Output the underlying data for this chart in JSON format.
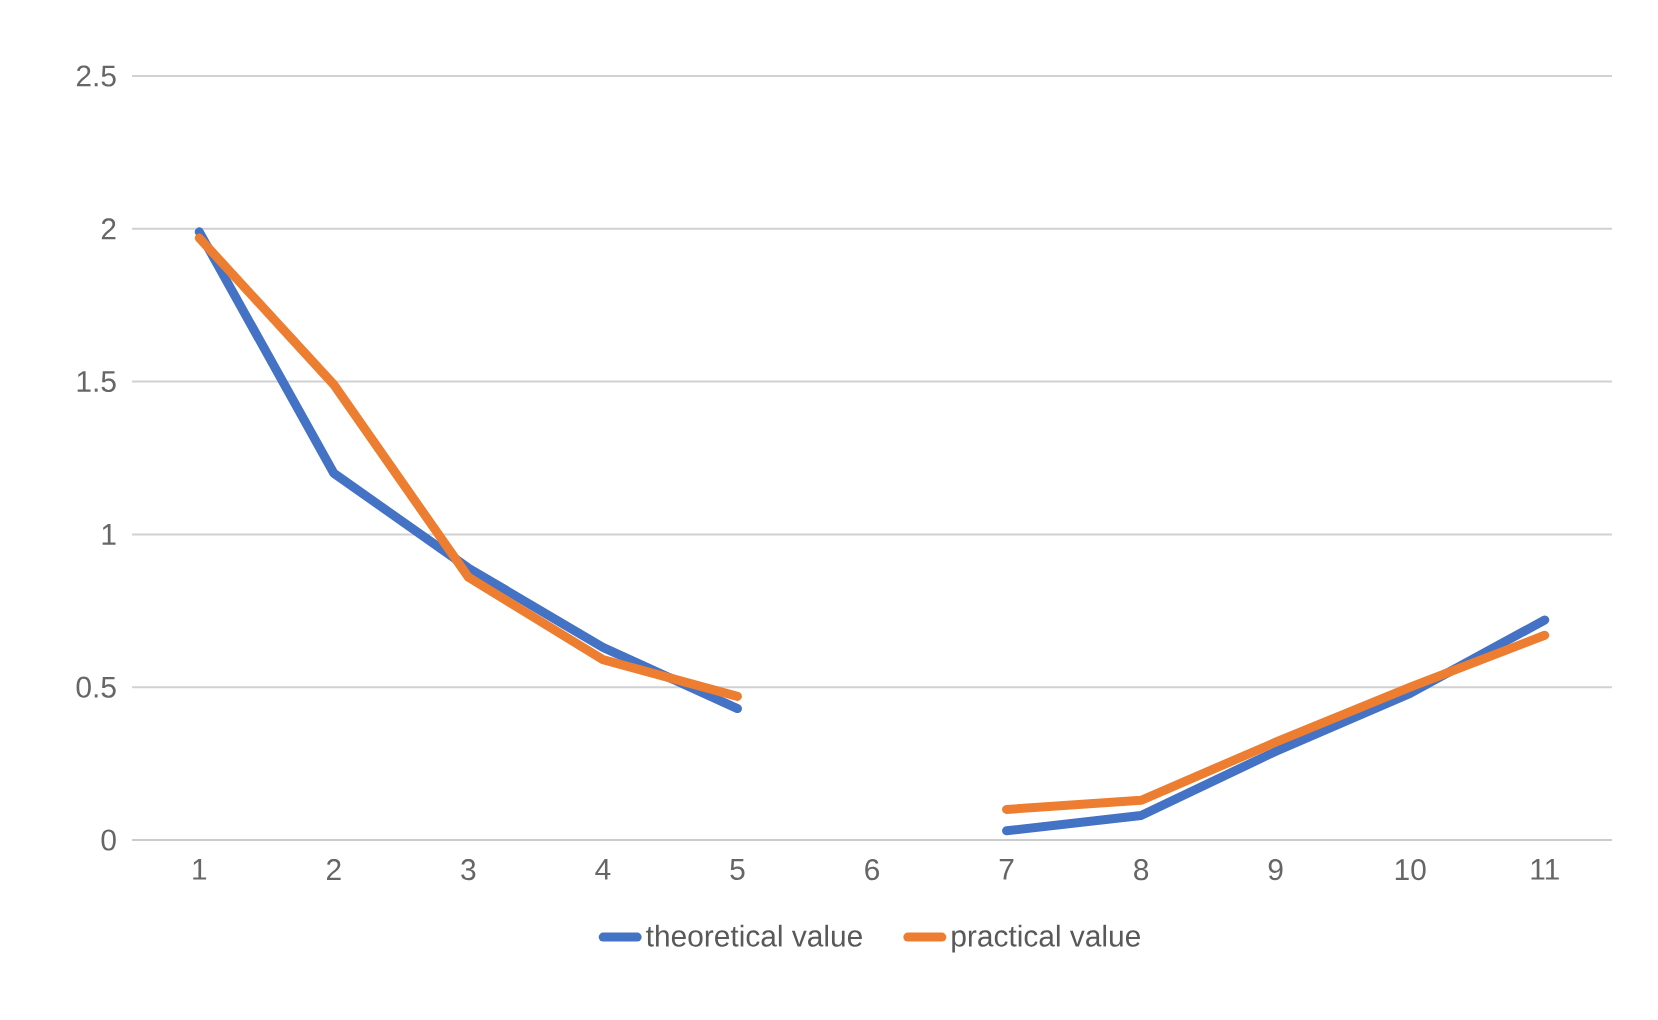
{
  "chart_data": {
    "type": "line",
    "categories": [
      "1",
      "2",
      "3",
      "4",
      "5",
      "6",
      "7",
      "8",
      "9",
      "10",
      "11"
    ],
    "series": [
      {
        "name": "theoretical value",
        "color": "#4472c4",
        "values": [
          1.99,
          1.2,
          0.89,
          0.63,
          0.43,
          null,
          0.03,
          0.08,
          0.29,
          0.48,
          0.72
        ]
      },
      {
        "name": "practical value",
        "color": "#ed7d31",
        "values": [
          1.97,
          1.49,
          0.86,
          0.59,
          0.47,
          null,
          0.1,
          0.13,
          0.32,
          0.5,
          0.67
        ]
      }
    ],
    "ylim": [
      0,
      2.5
    ],
    "yticks": [
      0,
      0.5,
      1,
      1.5,
      2,
      2.5
    ],
    "grid": "y",
    "legend": "bottom",
    "marker": "none",
    "line_style": "solid"
  }
}
